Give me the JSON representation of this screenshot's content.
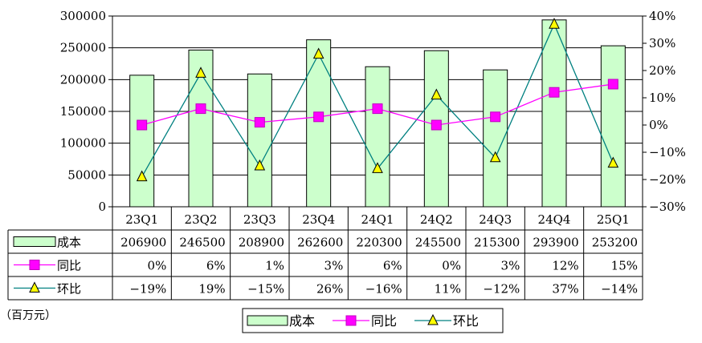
{
  "chart_data": {
    "type": "bar",
    "categories": [
      "23Q1",
      "23Q2",
      "23Q3",
      "23Q4",
      "24Q1",
      "24Q2",
      "24Q3",
      "24Q4",
      "25Q1"
    ],
    "series": [
      {
        "name": "成本",
        "type": "bar",
        "axis": "left",
        "values": [
          206900,
          246500,
          208900,
          262600,
          220300,
          245500,
          215300,
          293900,
          253200
        ],
        "labels": [
          "206900",
          "246500",
          "208900",
          "262600",
          "220300",
          "245500",
          "215300",
          "293900",
          "253200"
        ],
        "color": "#ccffcc"
      },
      {
        "name": "同比",
        "type": "line",
        "axis": "right",
        "values": [
          0,
          6,
          1,
          3,
          6,
          0,
          3,
          12,
          15
        ],
        "labels": [
          "0%",
          "6%",
          "1%",
          "3%",
          "6%",
          "0%",
          "3%",
          "12%",
          "15%"
        ],
        "color": "#ff00ff",
        "marker": "square"
      },
      {
        "name": "环比",
        "type": "line",
        "axis": "right",
        "values": [
          -19,
          19,
          -15,
          26,
          -16,
          11,
          -12,
          37,
          -14
        ],
        "labels": [
          "−19%",
          "19%",
          "−15%",
          "26%",
          "−16%",
          "11%",
          "−12%",
          "37%",
          "−14%"
        ],
        "color": "#008080",
        "marker": "triangle",
        "marker_color": "#ffff00"
      }
    ],
    "ylim_left": [
      0,
      300000
    ],
    "yticks_left": [
      "0",
      "50000",
      "100000",
      "150000",
      "200000",
      "250000",
      "300000"
    ],
    "ylim_right": [
      -30,
      40
    ],
    "yticks_right": [
      "−30%",
      "−20%",
      "−10%",
      "0%",
      "10%",
      "20%",
      "30%",
      "40%"
    ],
    "unit_label": "（百万元）",
    "grid": true,
    "legend_position": "bottom",
    "data_table": true
  }
}
